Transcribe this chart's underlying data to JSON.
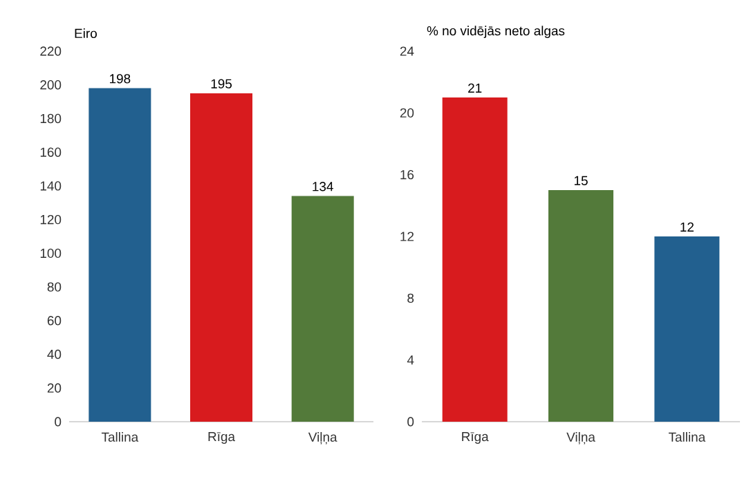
{
  "chart_data": [
    {
      "type": "bar",
      "title": "Eiro",
      "categories": [
        "Tallina",
        "Rīga",
        "Viļņa"
      ],
      "values": [
        198,
        195,
        134
      ],
      "colors": [
        "#22608f",
        "#d81b1e",
        "#537a3a"
      ],
      "ylim": [
        0,
        220
      ],
      "yticks": [
        0,
        20,
        40,
        60,
        80,
        100,
        120,
        140,
        160,
        180,
        200,
        220
      ],
      "data_labels": true
    },
    {
      "type": "bar",
      "title": "% no vidējās neto algas",
      "categories": [
        "Rīga",
        "Viļņa",
        "Tallina"
      ],
      "values": [
        21,
        15,
        12
      ],
      "colors": [
        "#d81b1e",
        "#537a3a",
        "#22608f"
      ],
      "ylim": [
        0,
        24
      ],
      "yticks": [
        0,
        4,
        8,
        12,
        16,
        20,
        24
      ],
      "data_labels": true
    }
  ]
}
